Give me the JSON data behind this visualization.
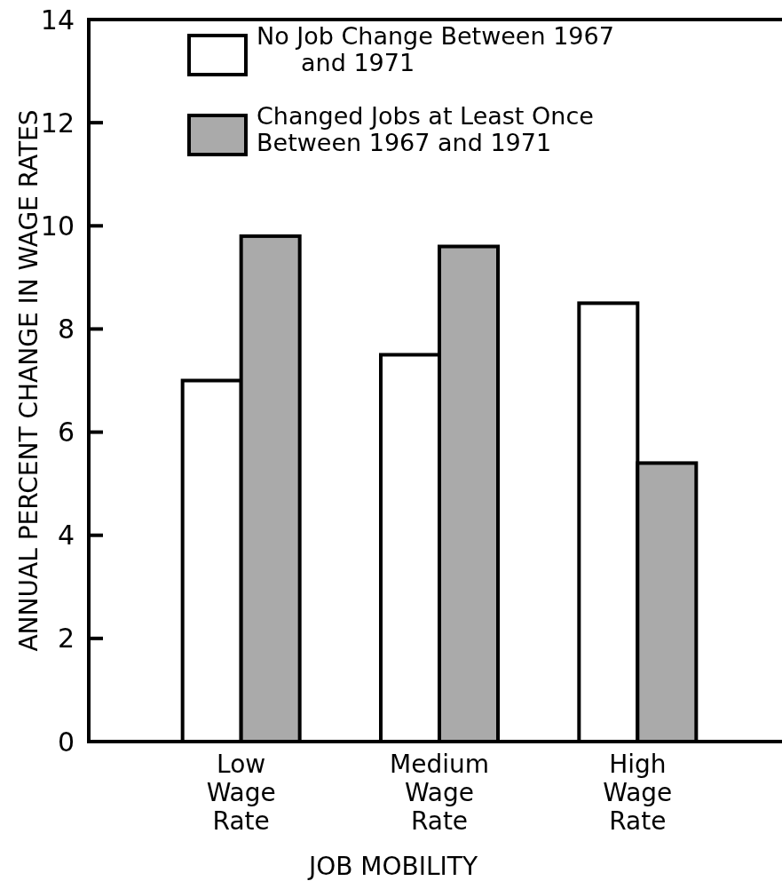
{
  "chart_data": {
    "type": "bar",
    "xlabel": "JOB MOBILITY",
    "ylabel": "ANNUAL PERCENT CHANGE IN WAGE RATES",
    "categories": [
      "Low\nWage\nRate",
      "Medium\nWage\nRate",
      "High\nWage\nRate"
    ],
    "series": [
      {
        "name": "No Job Change Between 1967\nand 1971",
        "color": "#ffffff",
        "values": [
          7.0,
          7.5,
          8.5
        ]
      },
      {
        "name": "Changed Jobs at Least Once\nBetween 1967 and 1971",
        "color": "#aaaaaa",
        "values": [
          9.8,
          9.6,
          5.4
        ]
      }
    ],
    "ylim": [
      0,
      14
    ],
    "yticks": [
      0,
      2,
      4,
      6,
      8,
      10,
      12,
      14
    ],
    "legend": "top left",
    "grid": false
  }
}
